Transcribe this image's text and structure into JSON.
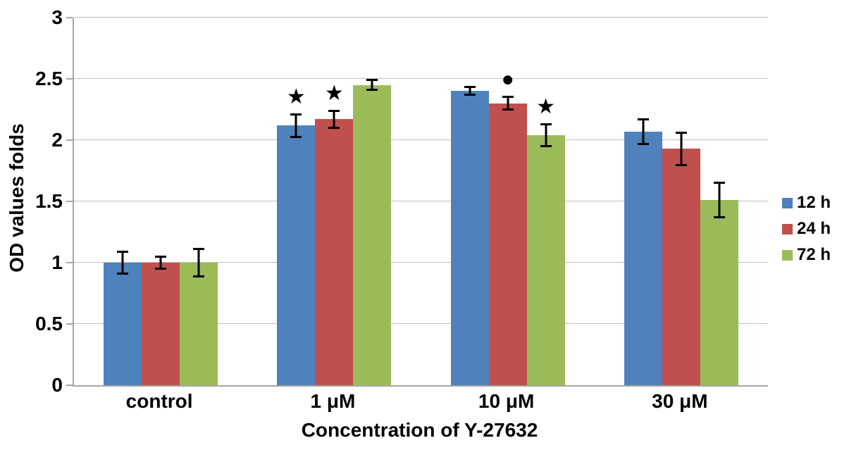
{
  "figure": {
    "background": "#ffffff",
    "axis_color": "#a6a6a6",
    "gridline_color": "#bfbfbf",
    "error_bar_color": "#000000",
    "text_color": "#000000"
  },
  "chart_data": {
    "type": "bar",
    "title": "",
    "xlabel": "Concentration of Y-27632",
    "ylabel": "OD values folds",
    "categories": [
      "control",
      "1 μM",
      "10 μM",
      "30 μM"
    ],
    "series": [
      {
        "name": "12 h",
        "color": "#4f81bd",
        "values": [
          1.0,
          2.12,
          2.4,
          2.07
        ],
        "errors": [
          0.1,
          0.1,
          0.04,
          0.11
        ]
      },
      {
        "name": "24 h",
        "color": "#c0504d",
        "values": [
          1.0,
          2.17,
          2.3,
          1.93
        ],
        "errors": [
          0.06,
          0.08,
          0.06,
          0.14
        ]
      },
      {
        "name": "72 h",
        "color": "#9bbb59",
        "values": [
          1.0,
          2.45,
          2.04,
          1.51
        ],
        "errors": [
          0.12,
          0.05,
          0.1,
          0.15
        ]
      }
    ],
    "annotations": [
      {
        "category": "1 μM",
        "series": "12 h",
        "symbol": "★",
        "meaning": "significance-star"
      },
      {
        "category": "1 μM",
        "series": "24 h",
        "symbol": "★",
        "meaning": "significance-star"
      },
      {
        "category": "10 μM",
        "series": "24 h",
        "symbol": "●",
        "meaning": "significance-dot"
      },
      {
        "category": "10 μM",
        "series": "72 h",
        "symbol": "★",
        "meaning": "significance-star"
      }
    ],
    "ylim": [
      0,
      3
    ],
    "ytick_step": 0.5,
    "yticks": [
      "0",
      "0.5",
      "1",
      "1.5",
      "2",
      "2.5",
      "3"
    ],
    "grid": true,
    "error_bars": true,
    "legend_position": "right"
  }
}
